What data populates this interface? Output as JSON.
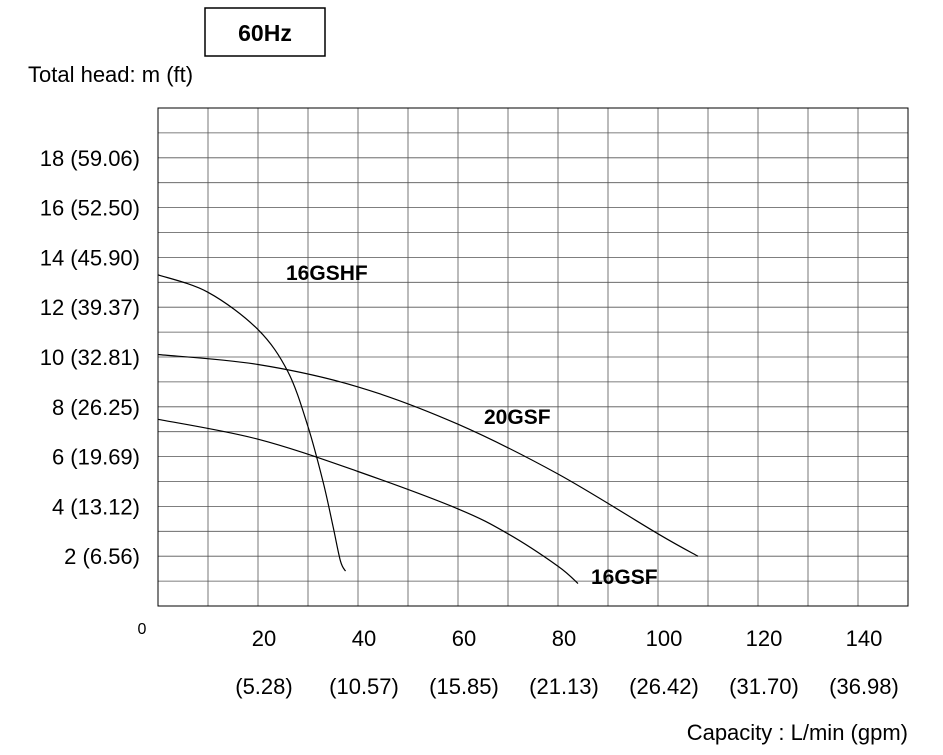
{
  "chart_data": {
    "type": "line",
    "frequency_label": "60Hz",
    "ylabel": "Total head: m (ft)",
    "xlabel": "Capacity : L/min (gpm)",
    "origin_label": "0",
    "xlim": [
      0,
      150
    ],
    "ylim": [
      0,
      20
    ],
    "grid": true,
    "x_ticks": [
      {
        "value": 20,
        "label": "20",
        "sub": "(5.28)"
      },
      {
        "value": 40,
        "label": "40",
        "sub": "(10.57)"
      },
      {
        "value": 60,
        "label": "60",
        "sub": "(15.85)"
      },
      {
        "value": 80,
        "label": "80",
        "sub": "(21.13)"
      },
      {
        "value": 100,
        "label": "100",
        "sub": "(26.42)"
      },
      {
        "value": 120,
        "label": "120",
        "sub": "(31.70)"
      },
      {
        "value": 140,
        "label": "140",
        "sub": "(36.98)"
      }
    ],
    "y_ticks": [
      {
        "value": 2,
        "label": "2 (6.56)"
      },
      {
        "value": 4,
        "label": "4 (13.12)"
      },
      {
        "value": 6,
        "label": "6 (19.69)"
      },
      {
        "value": 8,
        "label": "8 (26.25)"
      },
      {
        "value": 10,
        "label": "10 (32.81)"
      },
      {
        "value": 12,
        "label": "12 (39.37)"
      },
      {
        "value": 14,
        "label": "14 (45.90)"
      },
      {
        "value": 16,
        "label": "16 (52.50)"
      },
      {
        "value": 18,
        "label": "18 (59.06)"
      }
    ],
    "series": [
      {
        "name": "16GSHF",
        "x": [
          0,
          10,
          20,
          26,
          30,
          33,
          35,
          36.5,
          37.5
        ],
        "y": [
          13.3,
          12.6,
          11.1,
          9.4,
          7.2,
          5.0,
          3.2,
          1.8,
          1.4
        ]
      },
      {
        "name": "20GSF",
        "x": [
          0,
          20,
          40,
          60,
          80,
          100,
          108
        ],
        "y": [
          10.1,
          9.7,
          8.8,
          7.3,
          5.3,
          2.9,
          2.0
        ]
      },
      {
        "name": "16GSF",
        "x": [
          0,
          20,
          40,
          60,
          70,
          80,
          84
        ],
        "y": [
          7.5,
          6.7,
          5.4,
          3.9,
          2.9,
          1.6,
          0.9
        ]
      }
    ]
  }
}
